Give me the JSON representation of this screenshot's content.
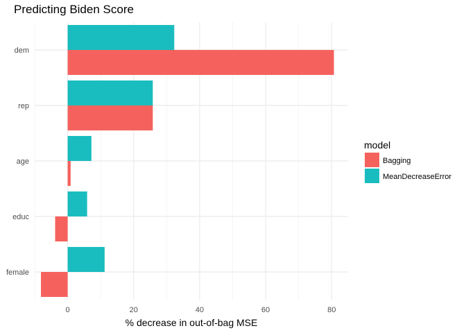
{
  "chart_data": {
    "type": "bar",
    "orientation": "horizontal",
    "title": "Predicting Biden Score",
    "xlabel": "% decrease in out-of-bag MSE",
    "ylabel": "",
    "categories": [
      "dem",
      "rep",
      "age",
      "educ",
      "female"
    ],
    "xlim": [
      -10,
      85
    ],
    "x_ticks": [
      0,
      20,
      40,
      60,
      80
    ],
    "grid": true,
    "legend": {
      "title": "model",
      "position": "right"
    },
    "series": [
      {
        "name": "MeanDecreaseError",
        "color": "#1abdbf",
        "values": [
          32.3,
          25.8,
          7.2,
          5.9,
          11.2
        ]
      },
      {
        "name": "Bagging",
        "color": "#f5625d",
        "values": [
          80.7,
          25.8,
          0.9,
          -3.8,
          -8.1
        ]
      }
    ]
  }
}
